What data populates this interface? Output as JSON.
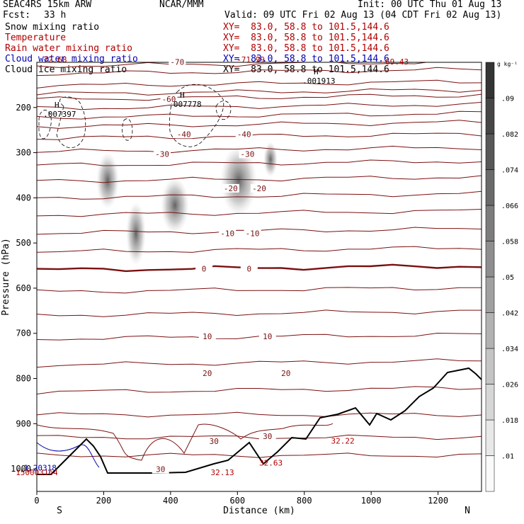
{
  "header": {
    "model": "SEAC4RS 15km ARW",
    "org": "NCAR/MMM",
    "init": "Init: 00 UTC Thu 01 Aug 13",
    "fcst_label": "Fcst:",
    "fcst_value": "33 h",
    "valid": "Valid: 09 UTC Fri 02 Aug 13 (04 CDT Fri 02 Aug 13)",
    "fields": [
      {
        "name": "Snow mixing ratio",
        "xy": "",
        "color": "#000000"
      },
      {
        "name": "Temperature",
        "xy": "XY=  83.0, 58.8 to 101.5,144.6",
        "color": "#b00000"
      },
      {
        "name": "Rain water mixing ratio",
        "xy": "XY=  83.0, 58.8 to 101.5,144.6",
        "color": "#b00000"
      },
      {
        "name": "Cloud water mixing ratio",
        "xy": "XY=  83.0, 58.8 to 101.5,144.6",
        "color": "#0000b0"
      },
      {
        "name": "Cloud ice mixing ratio",
        "xy": "XY=  83.0, 58.8 to 101.5,144.6",
        "color": "#000000"
      }
    ],
    "first_xy": "XY=  83.0, 58.8 to 101.5,144.6"
  },
  "chart_data": {
    "type": "contour",
    "xlabel": "Distance (km)",
    "ylabel": "Pressure (hPa)",
    "xlim": [
      0,
      1330
    ],
    "ylim": [
      1050,
      100
    ],
    "x_ticks": [
      0,
      200,
      400,
      600,
      800,
      1000,
      1200
    ],
    "y_ticks": [
      200,
      300,
      400,
      500,
      600,
      700,
      800,
      900,
      1000
    ],
    "left_end_label": "S",
    "right_end_label": "N",
    "colorbar": {
      "unit": "g kg⁻¹",
      "ticks": [
        ".01",
        ".018",
        ".026",
        ".034",
        ".042",
        ".05",
        ".058",
        ".066",
        ".074",
        ".082",
        ".09"
      ]
    },
    "temperature_labels": [
      {
        "x": 420,
        "p": 102,
        "text": "-70"
      },
      {
        "x": 395,
        "p": 185,
        "text": "-60"
      },
      {
        "x": 440,
        "p": 262,
        "text": "-40"
      },
      {
        "x": 620,
        "p": 262,
        "text": "-40"
      },
      {
        "x": 375,
        "p": 306,
        "text": "-30"
      },
      {
        "x": 630,
        "p": 306,
        "text": "-30"
      },
      {
        "x": 580,
        "p": 382,
        "text": "-20"
      },
      {
        "x": 665,
        "p": 382,
        "text": "-20"
      },
      {
        "x": 570,
        "p": 482,
        "text": "-10"
      },
      {
        "x": 645,
        "p": 482,
        "text": "-10"
      },
      {
        "x": 500,
        "p": 560,
        "text": "0"
      },
      {
        "x": 635,
        "p": 560,
        "text": "0"
      },
      {
        "x": 510,
        "p": 710,
        "text": "10"
      },
      {
        "x": 690,
        "p": 710,
        "text": "10"
      },
      {
        "x": 510,
        "p": 791,
        "text": "20"
      },
      {
        "x": 745,
        "p": 791,
        "text": "20"
      },
      {
        "x": 530,
        "p": 942,
        "text": "30"
      },
      {
        "x": 690,
        "p": 931,
        "text": "30"
      },
      {
        "x": 370,
        "p": 1004,
        "text": "30"
      }
    ],
    "extrema": [
      {
        "x": 55,
        "p": 100,
        "text": "72.68",
        "color": "#b00000"
      },
      {
        "x": 640,
        "p": 100,
        "text": "-71.99",
        "color": "#b00000"
      },
      {
        "x": 1070,
        "p": 105,
        "text": "-69.43",
        "color": "#b00000"
      },
      {
        "x": 555,
        "p": 1014,
        "text": "32.13",
        "color": "#b00000"
      },
      {
        "x": 700,
        "p": 993,
        "text": "32.63",
        "color": "#b00000"
      },
      {
        "x": 915,
        "p": 944,
        "text": "32.22",
        "color": "#b00000"
      },
      {
        "x": 10,
        "p": 1004,
        "text": "1.20318",
        "color": "#0000b0"
      },
      {
        "x": 0,
        "p": 1014,
        "text": "150003164",
        "color": "#b00000"
      }
    ],
    "highs": [
      {
        "x": 60,
        "p": 200,
        "value": ".007397"
      },
      {
        "x": 435,
        "p": 178,
        "value": ".007778"
      },
      {
        "x": 835,
        "p": 127,
        "value": ".001913"
      }
    ]
  }
}
